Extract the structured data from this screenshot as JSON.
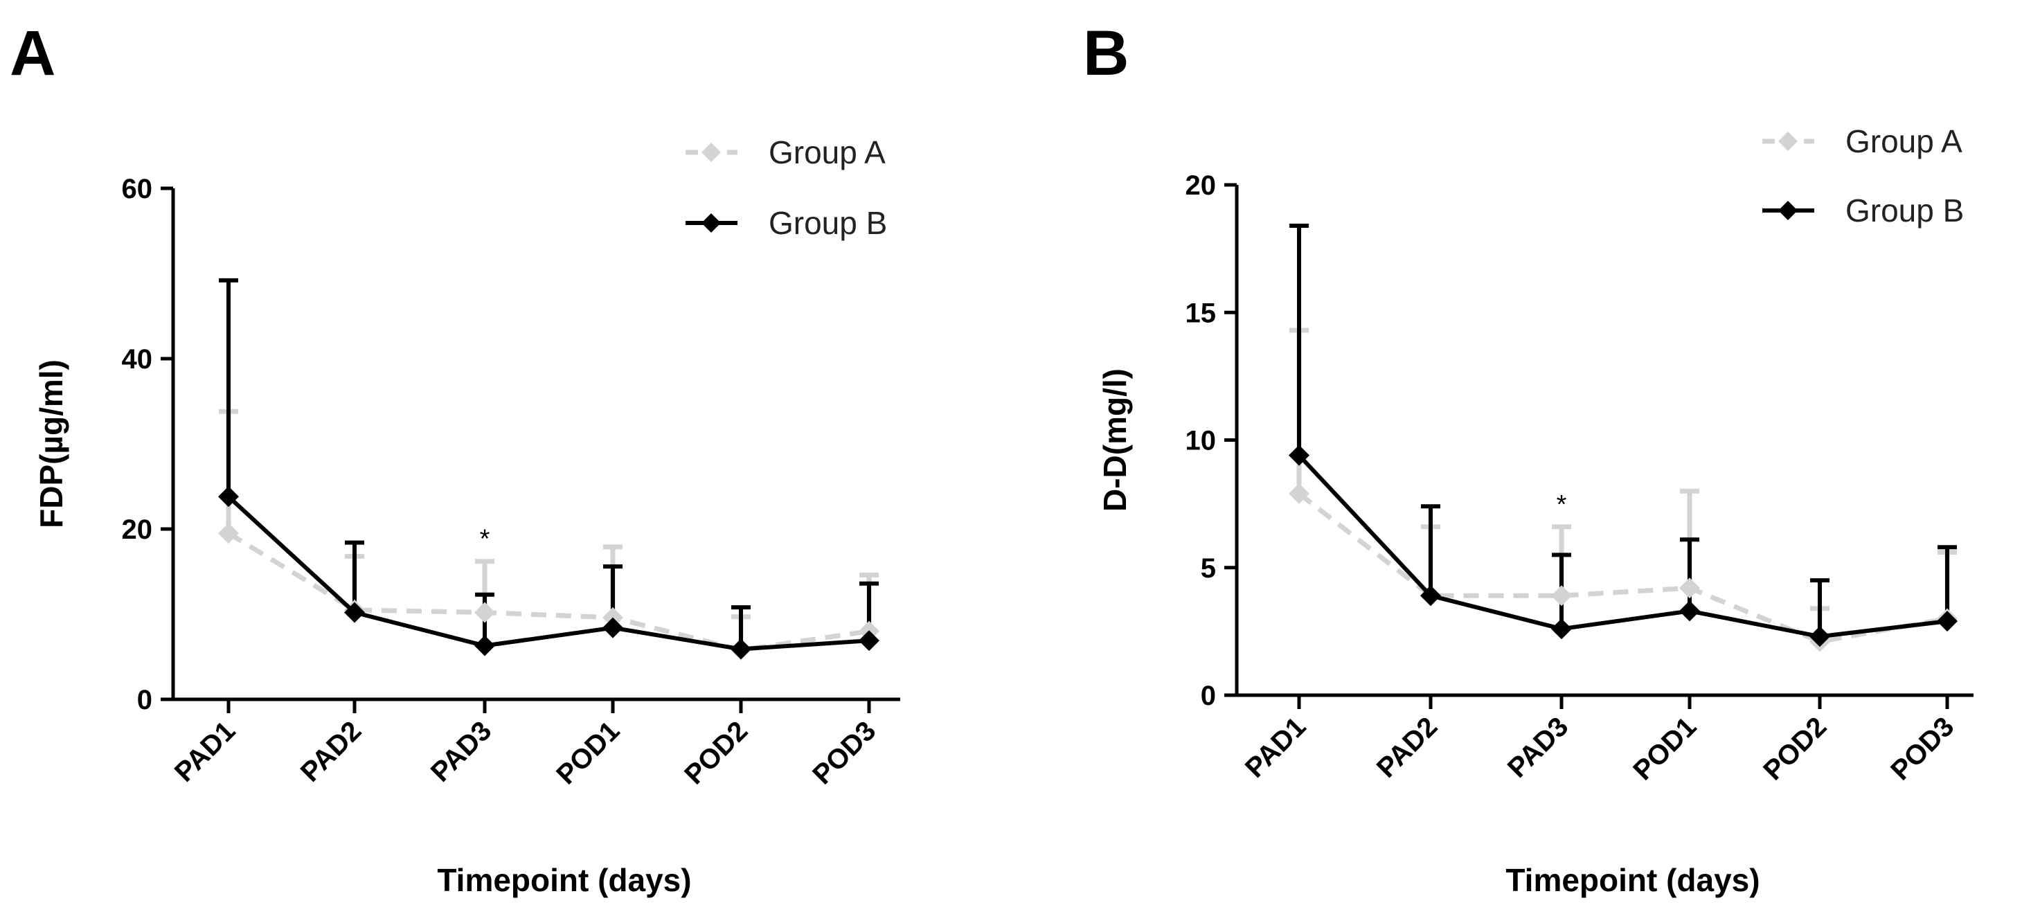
{
  "chart_data": [
    {
      "panel": "A",
      "type": "line",
      "categories": [
        "PAD1",
        "PAD2",
        "PAD3",
        "POD1",
        "POD2",
        "POD3"
      ],
      "xlabel": "Timepoint (days)",
      "ylabel": "FDP(µg/ml)",
      "ylim": [
        0,
        60
      ],
      "yticks": [
        "0",
        "20",
        "40",
        "60"
      ],
      "grid": false,
      "legend_position": "top-right",
      "series": [
        {
          "name": "Group A",
          "color": "#d3d3d3",
          "style": "dashed",
          "values": [
            19.5,
            10.5,
            10.2,
            9.6,
            5.8,
            8.0
          ],
          "error_upper": [
            33.8,
            16.8,
            16.2,
            17.9,
            9.7,
            14.6
          ]
        },
        {
          "name": "Group B",
          "color": "#000000",
          "style": "solid",
          "values": [
            23.8,
            10.2,
            6.3,
            8.4,
            5.9,
            6.9
          ],
          "error_upper": [
            49.2,
            18.4,
            12.3,
            15.6,
            10.8,
            13.6
          ]
        }
      ],
      "annotations": [
        {
          "category": "PAD3",
          "text": "*"
        }
      ]
    },
    {
      "panel": "B",
      "type": "line",
      "categories": [
        "PAD1",
        "PAD2",
        "PAD3",
        "POD1",
        "POD2",
        "POD3"
      ],
      "xlabel": "Timepoint (days)",
      "ylabel": "D-D(mg/l)",
      "ylim": [
        0,
        20
      ],
      "yticks": [
        "0",
        "5",
        "10",
        "15",
        "20"
      ],
      "grid": false,
      "legend_position": "top-right",
      "series": [
        {
          "name": "Group A",
          "color": "#d3d3d3",
          "style": "dashed",
          "values": [
            7.9,
            3.9,
            3.9,
            4.2,
            2.1,
            3.0
          ],
          "error_upper": [
            14.3,
            6.6,
            6.6,
            8.0,
            3.4,
            5.6
          ]
        },
        {
          "name": "Group B",
          "color": "#000000",
          "style": "solid",
          "values": [
            9.4,
            3.9,
            2.6,
            3.3,
            2.3,
            2.9
          ],
          "error_upper": [
            18.4,
            7.4,
            5.5,
            6.1,
            4.5,
            5.8
          ]
        }
      ],
      "annotations": [
        {
          "category": "PAD3",
          "text": "*"
        }
      ]
    }
  ]
}
